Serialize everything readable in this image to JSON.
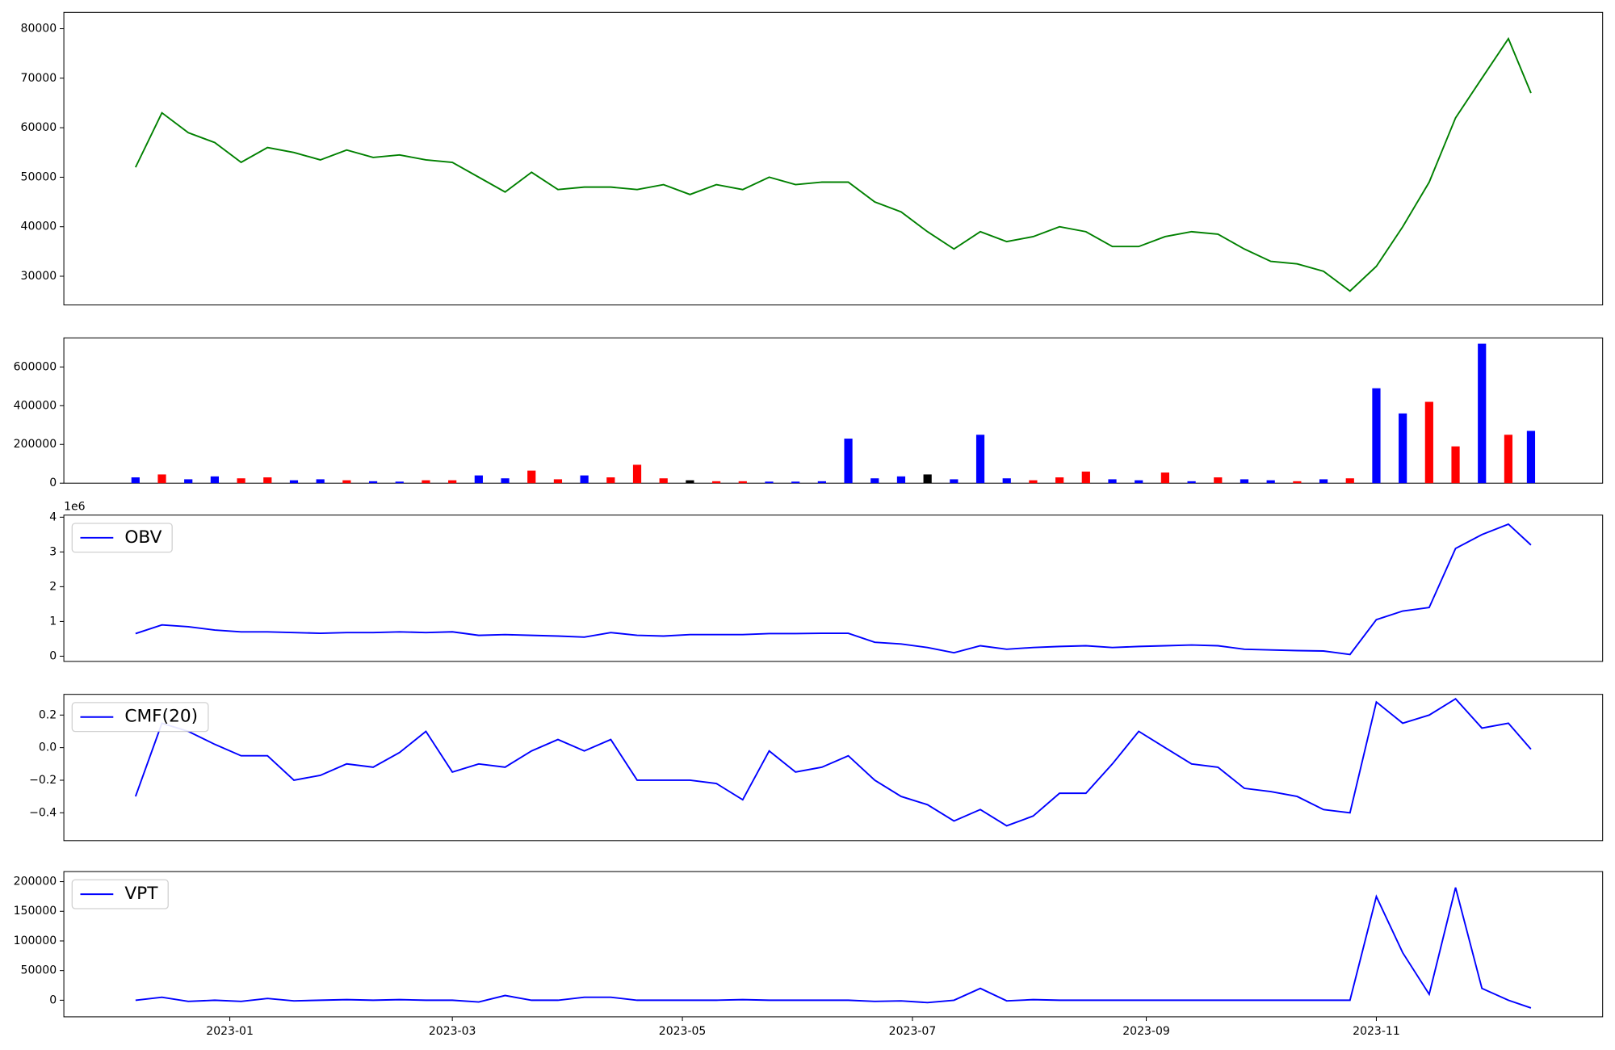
{
  "chart_data": [
    {
      "type": "line",
      "color": "#008000",
      "x": [
        "2022-12-07",
        "2022-12-14",
        "2022-12-21",
        "2022-12-28",
        "2023-01-04",
        "2023-01-11",
        "2023-01-18",
        "2023-01-25",
        "2023-02-01",
        "2023-02-08",
        "2023-02-15",
        "2023-02-22",
        "2023-03-01",
        "2023-03-08",
        "2023-03-15",
        "2023-03-22",
        "2023-03-29",
        "2023-04-05",
        "2023-04-12",
        "2023-04-19",
        "2023-04-26",
        "2023-05-03",
        "2023-05-10",
        "2023-05-17",
        "2023-05-24",
        "2023-05-31",
        "2023-06-07",
        "2023-06-14",
        "2023-06-21",
        "2023-06-28",
        "2023-07-05",
        "2023-07-12",
        "2023-07-19",
        "2023-07-26",
        "2023-08-02",
        "2023-08-09",
        "2023-08-16",
        "2023-08-23",
        "2023-08-30",
        "2023-09-06",
        "2023-09-13",
        "2023-09-20",
        "2023-09-27",
        "2023-10-04",
        "2023-10-11",
        "2023-10-18",
        "2023-10-25",
        "2023-11-01",
        "2023-11-08",
        "2023-11-15",
        "2023-11-22",
        "2023-11-29",
        "2023-12-06",
        "2023-12-12"
      ],
      "values": [
        52000,
        63000,
        59000,
        57000,
        53000,
        56000,
        55000,
        53500,
        55500,
        54000,
        54500,
        53500,
        53000,
        50000,
        47000,
        51000,
        47500,
        48000,
        48000,
        47500,
        48500,
        46500,
        48500,
        47500,
        50000,
        48500,
        49000,
        49000,
        45000,
        43000,
        39000,
        35500,
        39000,
        37000,
        38000,
        40000,
        39000,
        36000,
        36000,
        38000,
        39000,
        38500,
        35500,
        33000,
        32500,
        31000,
        27000,
        32000,
        40000,
        49000,
        62000,
        70000,
        78000,
        67000
      ],
      "xlim": [
        "2022-11-18",
        "2023-12-31"
      ],
      "ylim": [
        24200,
        83300
      ],
      "yticks": [
        30000,
        40000,
        50000,
        60000,
        70000,
        80000
      ]
    },
    {
      "type": "bar",
      "x": [
        "2022-12-07",
        "2022-12-14",
        "2022-12-21",
        "2022-12-28",
        "2023-01-04",
        "2023-01-11",
        "2023-01-18",
        "2023-01-25",
        "2023-02-01",
        "2023-02-08",
        "2023-02-15",
        "2023-02-22",
        "2023-03-01",
        "2023-03-08",
        "2023-03-15",
        "2023-03-22",
        "2023-03-29",
        "2023-04-05",
        "2023-04-12",
        "2023-04-19",
        "2023-04-26",
        "2023-05-03",
        "2023-05-10",
        "2023-05-17",
        "2023-05-24",
        "2023-05-31",
        "2023-06-07",
        "2023-06-14",
        "2023-06-21",
        "2023-06-28",
        "2023-07-05",
        "2023-07-12",
        "2023-07-19",
        "2023-07-26",
        "2023-08-02",
        "2023-08-09",
        "2023-08-16",
        "2023-08-23",
        "2023-08-30",
        "2023-09-06",
        "2023-09-13",
        "2023-09-20",
        "2023-09-27",
        "2023-10-04",
        "2023-10-11",
        "2023-10-18",
        "2023-10-25",
        "2023-11-01",
        "2023-11-08",
        "2023-11-15",
        "2023-11-22",
        "2023-11-29",
        "2023-12-06",
        "2023-12-12"
      ],
      "values": [
        30000,
        45000,
        20000,
        35000,
        25000,
        30000,
        15000,
        20000,
        15000,
        10000,
        8000,
        15000,
        15000,
        40000,
        25000,
        65000,
        20000,
        40000,
        30000,
        95000,
        25000,
        15000,
        10000,
        10000,
        8000,
        8000,
        10000,
        230000,
        25000,
        35000,
        45000,
        20000,
        250000,
        25000,
        15000,
        30000,
        60000,
        20000,
        15000,
        55000,
        10000,
        30000,
        20000,
        15000,
        10000,
        20000,
        25000,
        490000,
        360000,
        420000,
        190000,
        720000,
        250000,
        270000
      ],
      "colors": [
        "blue",
        "red",
        "blue",
        "blue",
        "red",
        "red",
        "blue",
        "blue",
        "red",
        "blue",
        "blue",
        "red",
        "red",
        "blue",
        "blue",
        "red",
        "red",
        "blue",
        "red",
        "red",
        "red",
        "black",
        "red",
        "red",
        "blue",
        "blue",
        "blue",
        "blue",
        "blue",
        "blue",
        "black",
        "blue",
        "blue",
        "blue",
        "red",
        "red",
        "red",
        "blue",
        "blue",
        "red",
        "blue",
        "red",
        "blue",
        "blue",
        "red",
        "blue",
        "red",
        "blue",
        "blue",
        "red",
        "red",
        "blue",
        "red",
        "blue"
      ],
      "xlim": [
        "2022-11-18",
        "2023-12-31"
      ],
      "ylim": [
        0,
        750000
      ],
      "yticks": [
        0,
        200000,
        400000,
        600000
      ]
    },
    {
      "type": "line",
      "offset_text": "1e6",
      "legend": "upper left",
      "x": [
        "2022-12-07",
        "2022-12-14",
        "2022-12-21",
        "2022-12-28",
        "2023-01-04",
        "2023-01-11",
        "2023-01-18",
        "2023-01-25",
        "2023-02-01",
        "2023-02-08",
        "2023-02-15",
        "2023-02-22",
        "2023-03-01",
        "2023-03-08",
        "2023-03-15",
        "2023-03-22",
        "2023-03-29",
        "2023-04-05",
        "2023-04-12",
        "2023-04-19",
        "2023-04-26",
        "2023-05-03",
        "2023-05-10",
        "2023-05-17",
        "2023-05-24",
        "2023-05-31",
        "2023-06-07",
        "2023-06-14",
        "2023-06-21",
        "2023-06-28",
        "2023-07-05",
        "2023-07-12",
        "2023-07-19",
        "2023-07-26",
        "2023-08-02",
        "2023-08-09",
        "2023-08-16",
        "2023-08-23",
        "2023-08-30",
        "2023-09-06",
        "2023-09-13",
        "2023-09-20",
        "2023-09-27",
        "2023-10-04",
        "2023-10-11",
        "2023-10-18",
        "2023-10-25",
        "2023-11-01",
        "2023-11-08",
        "2023-11-15",
        "2023-11-22",
        "2023-11-29",
        "2023-12-06",
        "2023-12-12"
      ],
      "series": [
        {
          "name": "OBV",
          "color": "#0000ff",
          "values": [
            0.65,
            0.9,
            0.85,
            0.75,
            0.7,
            0.7,
            0.68,
            0.66,
            0.68,
            0.68,
            0.7,
            0.68,
            0.7,
            0.6,
            0.62,
            0.6,
            0.58,
            0.55,
            0.68,
            0.6,
            0.58,
            0.62,
            0.62,
            0.62,
            0.65,
            0.65,
            0.66,
            0.66,
            0.4,
            0.35,
            0.25,
            0.1,
            0.3,
            0.2,
            0.25,
            0.28,
            0.3,
            0.25,
            0.28,
            0.3,
            0.32,
            0.3,
            0.2,
            0.18,
            0.16,
            0.15,
            0.05,
            1.05,
            1.3,
            1.4,
            3.1,
            3.5,
            3.8,
            3.2
          ]
        }
      ],
      "xlim": [
        "2022-11-18",
        "2023-12-31"
      ],
      "ylim": [
        -0.15,
        4.06
      ],
      "yticks": [
        0,
        1,
        2,
        3,
        4
      ]
    },
    {
      "type": "line",
      "legend": "upper left",
      "x": [
        "2022-12-07",
        "2022-12-14",
        "2022-12-21",
        "2022-12-28",
        "2023-01-04",
        "2023-01-11",
        "2023-01-18",
        "2023-01-25",
        "2023-02-01",
        "2023-02-08",
        "2023-02-15",
        "2023-02-22",
        "2023-03-01",
        "2023-03-08",
        "2023-03-15",
        "2023-03-22",
        "2023-03-29",
        "2023-04-05",
        "2023-04-12",
        "2023-04-19",
        "2023-04-26",
        "2023-05-03",
        "2023-05-10",
        "2023-05-17",
        "2023-05-24",
        "2023-05-31",
        "2023-06-07",
        "2023-06-14",
        "2023-06-21",
        "2023-06-28",
        "2023-07-05",
        "2023-07-12",
        "2023-07-19",
        "2023-07-26",
        "2023-08-02",
        "2023-08-09",
        "2023-08-16",
        "2023-08-23",
        "2023-08-30",
        "2023-09-06",
        "2023-09-13",
        "2023-09-20",
        "2023-09-27",
        "2023-10-04",
        "2023-10-11",
        "2023-10-18",
        "2023-10-25",
        "2023-11-01",
        "2023-11-08",
        "2023-11-15",
        "2023-11-22",
        "2023-11-29",
        "2023-12-06",
        "2023-12-12"
      ],
      "series": [
        {
          "name": "CMF(20)",
          "color": "#0000ff",
          "values": [
            -0.3,
            0.15,
            0.1,
            0.02,
            -0.05,
            -0.05,
            -0.2,
            -0.17,
            -0.1,
            -0.12,
            -0.03,
            0.1,
            -0.15,
            -0.1,
            -0.12,
            -0.02,
            0.05,
            -0.02,
            0.05,
            -0.2,
            -0.2,
            -0.2,
            -0.22,
            -0.32,
            -0.02,
            -0.15,
            -0.12,
            -0.05,
            -0.2,
            -0.3,
            -0.35,
            -0.45,
            -0.38,
            -0.48,
            -0.42,
            -0.28,
            -0.28,
            -0.1,
            0.1,
            0.0,
            -0.1,
            -0.12,
            -0.25,
            -0.27,
            -0.3,
            -0.38,
            -0.4,
            0.28,
            0.15,
            0.2,
            0.3,
            0.12,
            0.15,
            -0.01
          ]
        }
      ],
      "xlim": [
        "2022-11-18",
        "2023-12-31"
      ],
      "ylim": [
        -0.571,
        0.327
      ],
      "yticks": [
        {
          "value": -0.4,
          "label": "−0.4"
        },
        {
          "value": -0.2,
          "label": "−0.2"
        },
        {
          "value": 0,
          "label": "0.0"
        },
        0.2
      ]
    },
    {
      "type": "line",
      "legend": "upper left",
      "x": [
        "2022-12-07",
        "2022-12-14",
        "2022-12-21",
        "2022-12-28",
        "2023-01-04",
        "2023-01-11",
        "2023-01-18",
        "2023-01-25",
        "2023-02-01",
        "2023-02-08",
        "2023-02-15",
        "2023-02-22",
        "2023-03-01",
        "2023-03-08",
        "2023-03-15",
        "2023-03-22",
        "2023-03-29",
        "2023-04-05",
        "2023-04-12",
        "2023-04-19",
        "2023-04-26",
        "2023-05-03",
        "2023-05-10",
        "2023-05-17",
        "2023-05-24",
        "2023-05-31",
        "2023-06-07",
        "2023-06-14",
        "2023-06-21",
        "2023-06-28",
        "2023-07-05",
        "2023-07-12",
        "2023-07-19",
        "2023-07-26",
        "2023-08-02",
        "2023-08-09",
        "2023-08-16",
        "2023-08-23",
        "2023-08-30",
        "2023-09-06",
        "2023-09-13",
        "2023-09-20",
        "2023-09-27",
        "2023-10-04",
        "2023-10-11",
        "2023-10-18",
        "2023-10-25",
        "2023-11-01",
        "2023-11-08",
        "2023-11-15",
        "2023-11-22",
        "2023-11-29",
        "2023-12-06",
        "2023-12-12"
      ],
      "series": [
        {
          "name": "VPT",
          "color": "#0000ff",
          "values": [
            0,
            5000,
            -2000,
            0,
            -2000,
            3000,
            -1000,
            0,
            1000,
            0,
            1000,
            0,
            0,
            -3000,
            8000,
            0,
            0,
            5000,
            5000,
            0,
            0,
            0,
            0,
            1000,
            0,
            0,
            0,
            0,
            -2000,
            -1000,
            -4000,
            0,
            20000,
            -1000,
            1000,
            0,
            0,
            0,
            0,
            0,
            0,
            0,
            0,
            0,
            0,
            0,
            0,
            175000,
            80000,
            10000,
            190000,
            20000,
            0,
            -13000
          ]
        }
      ],
      "xlim": [
        "2022-11-18",
        "2023-12-31"
      ],
      "ylim": [
        -28000,
        217000
      ],
      "yticks": [
        0,
        50000,
        100000,
        150000,
        200000
      ],
      "xticks": [
        {
          "value": "2023-01-01",
          "label": "2023-01"
        },
        {
          "value": "2023-03-01",
          "label": "2023-03"
        },
        {
          "value": "2023-05-01",
          "label": "2023-05"
        },
        {
          "value": "2023-07-01",
          "label": "2023-07"
        },
        {
          "value": "2023-09-01",
          "label": "2023-09"
        },
        {
          "value": "2023-11-01",
          "label": "2023-11"
        }
      ]
    }
  ]
}
